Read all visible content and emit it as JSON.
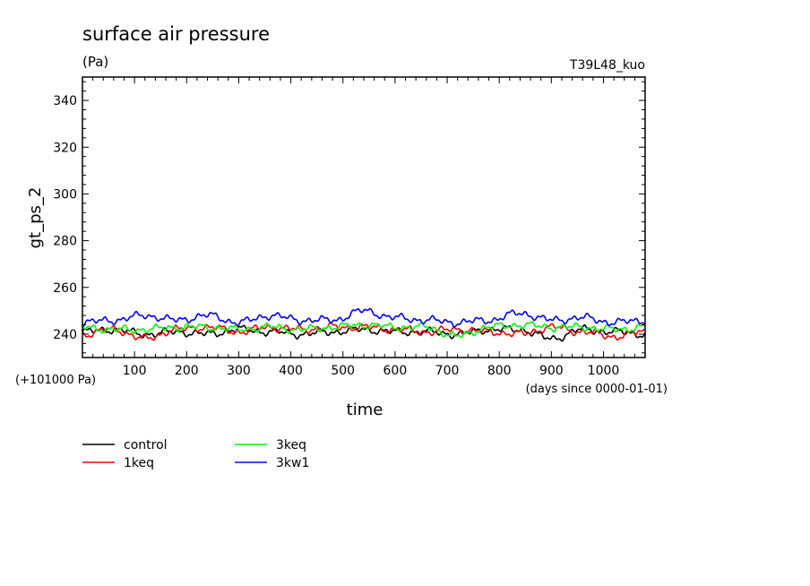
{
  "chart_data": {
    "type": "line",
    "title": "surface air pressure",
    "subtitle": "(Pa)",
    "model_label": "T39L48_kuo",
    "ylabel": "gt_ps_2",
    "xlabel": "time",
    "x_units": "(days since 0000-01-01)",
    "y_offset_label": "(+101000 Pa)",
    "xlim": [
      0,
      1080
    ],
    "ylim": [
      230,
      350
    ],
    "x_ticks": [
      100,
      200,
      300,
      400,
      500,
      600,
      700,
      800,
      900,
      1000
    ],
    "y_ticks": [
      240,
      260,
      280,
      300,
      320,
      340
    ],
    "series": [
      {
        "name": "control",
        "color": "#000000",
        "x": [
          0,
          60,
          120,
          180,
          240,
          300,
          360,
          420,
          480,
          540,
          600,
          660,
          720,
          780,
          840,
          900,
          960,
          1020,
          1080
        ],
        "y": [
          241,
          242,
          240,
          241,
          240,
          242,
          241,
          240,
          241,
          242,
          241,
          241,
          240,
          242,
          242,
          238,
          242,
          241,
          240
        ]
      },
      {
        "name": "1keq",
        "color": "#ff0000",
        "x": [
          0,
          60,
          120,
          180,
          240,
          300,
          360,
          420,
          480,
          540,
          600,
          660,
          720,
          780,
          840,
          900,
          960,
          1020,
          1080
        ],
        "y": [
          240,
          242,
          238,
          242,
          243,
          241,
          243,
          242,
          243,
          243,
          242,
          241,
          242,
          241,
          240,
          243,
          241,
          239,
          241
        ]
      },
      {
        "name": "3keq",
        "color": "#00ff00",
        "x": [
          0,
          60,
          120,
          180,
          240,
          300,
          360,
          420,
          480,
          540,
          600,
          660,
          720,
          780,
          840,
          900,
          960,
          1020,
          1080
        ],
        "y": [
          243,
          242,
          242,
          243,
          243,
          242,
          243,
          242,
          243,
          244,
          243,
          243,
          239,
          243,
          244,
          243,
          243,
          242,
          243
        ]
      },
      {
        "name": "3kw1",
        "color": "#0000ff",
        "x": [
          0,
          60,
          120,
          180,
          240,
          300,
          360,
          420,
          480,
          540,
          600,
          660,
          720,
          780,
          840,
          900,
          960,
          1020,
          1080
        ],
        "y": [
          245,
          246,
          248,
          246,
          248,
          245,
          248,
          246,
          246,
          250,
          247,
          246,
          245,
          246,
          249,
          246,
          247,
          245,
          246
        ]
      }
    ],
    "legend_placement": "below-left"
  }
}
